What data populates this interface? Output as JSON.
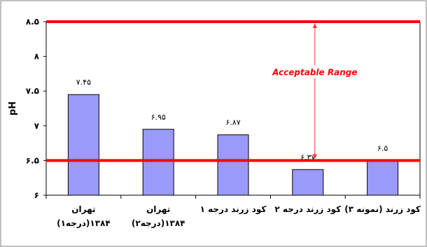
{
  "colors": {
    "bar_fill": "#9a9afa",
    "bar_stroke": "#000000",
    "threshold": "#ff0000",
    "arrow": "#ff3333",
    "annotation": "#ff0000",
    "frame": "#000000",
    "outer_border": "#808080"
  },
  "chart_data": {
    "type": "bar",
    "ylabel": "pH",
    "ylim": [
      6,
      8.5
    ],
    "ytick_values": [
      6,
      6.5,
      7,
      7.5,
      8,
      8.5
    ],
    "ytick_labels": [
      "۶",
      "۶.۵",
      "۷",
      "۷.۵",
      "۸",
      "۸.۵"
    ],
    "categories": [
      [
        "تهران",
        "۱۳۸۴(درجه۱)"
      ],
      [
        "تهران",
        "۱۳۸۴(درجه۲)"
      ],
      [
        "کود زرند درجه ۱"
      ],
      [
        "کود زرند درجه ۲"
      ],
      [
        "کود زرند (نمونه ۳)"
      ]
    ],
    "values": [
      7.45,
      6.95,
      6.87,
      6.37,
      6.5
    ],
    "data_labels": [
      "۷.۴۵",
      "۶.۹۵",
      "۶.۸۷",
      "۶.۳۷",
      "۶.۵"
    ],
    "thresholds": [
      6.5,
      8.5
    ],
    "annotation": "Acceptable Range",
    "grid": false,
    "legend": "none"
  }
}
